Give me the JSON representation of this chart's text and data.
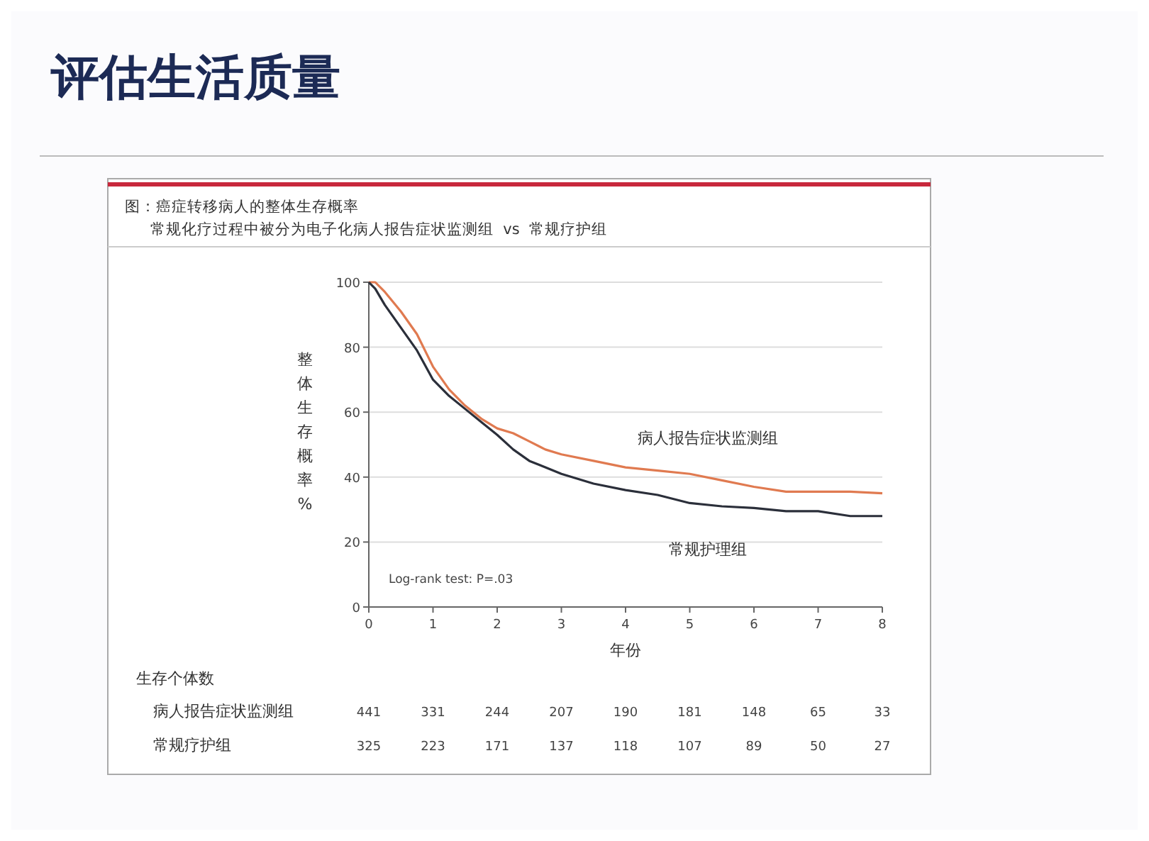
{
  "chart_data": {
    "type": "line",
    "title": "评估生活质量",
    "subtitle": "图：癌症转移病人的整体生存概率",
    "xlabel": "年份",
    "ylabel": "整体生存概率%",
    "xlim": [
      0,
      8
    ],
    "ylim": [
      0,
      100
    ],
    "xticks": [
      0,
      1,
      2,
      3,
      4,
      5,
      6,
      7,
      8
    ],
    "yticks": [
      0,
      20,
      40,
      60,
      80,
      100
    ],
    "grid": "y",
    "legend": false,
    "marker": "none",
    "line_style": "solid",
    "series": [
      {
        "name": "病人报告症状监测组",
        "color": "#e07a50",
        "x": [
          0,
          0.1,
          0.25,
          0.5,
          0.75,
          1,
          1.25,
          1.5,
          1.75,
          2,
          2.25,
          2.5,
          2.75,
          3,
          3.5,
          4,
          4.5,
          5,
          5.5,
          6,
          6.5,
          7,
          7.5,
          8
        ],
        "values": [
          100,
          100,
          97,
          91,
          84,
          74,
          67,
          62,
          58,
          55,
          53.5,
          51,
          48.5,
          47,
          45,
          43,
          42,
          41,
          39,
          37,
          35.5,
          35.5,
          35.5,
          35
        ]
      },
      {
        "name": "常规护理组",
        "color": "#2b2f3a",
        "x": [
          0,
          0.1,
          0.25,
          0.5,
          0.75,
          1,
          1.25,
          1.5,
          1.75,
          2,
          2.25,
          2.5,
          2.75,
          3,
          3.5,
          4,
          4.5,
          5,
          5.5,
          6,
          6.5,
          7,
          7.5,
          8
        ],
        "values": [
          100,
          98,
          93,
          86,
          79,
          70,
          65,
          61,
          57,
          53,
          48.5,
          45,
          43,
          41,
          38,
          36,
          34.5,
          32,
          31,
          30.5,
          29.5,
          29.5,
          28,
          28
        ]
      }
    ],
    "annotations": [
      "常规化疗过程中被分为电子化病人报告症状监测组  vs  常规疗护组",
      "Log-rank test: P=.03",
      "生存个体数",
      "病人报告症状监测组 441 331 244 207 190 181 148 65 33",
      "常规疗护组 325 223 171 137 118 107 89 50 27"
    ]
  }
}
